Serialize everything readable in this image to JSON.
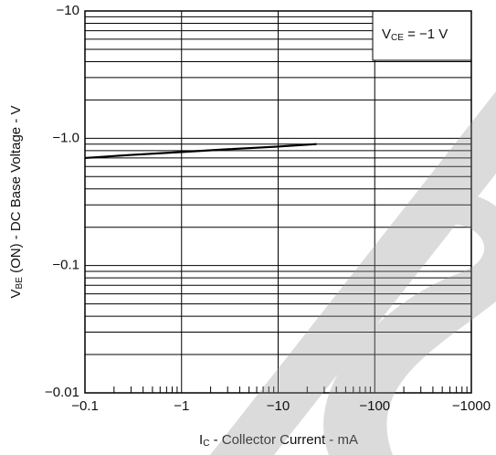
{
  "chart_data": {
    "type": "line",
    "x": [
      -0.1,
      -0.3,
      -1,
      -3,
      -10,
      -25
    ],
    "series": [
      {
        "color": "#000000",
        "values": [
          -0.7,
          -0.74,
          -0.78,
          -0.82,
          -0.86,
          -0.9
        ]
      }
    ],
    "xlim": [
      -0.1,
      -1000
    ],
    "ylim": [
      -0.01,
      -10
    ],
    "xticks": [
      {
        "value": -0.1,
        "label": "−0.1"
      },
      {
        "value": -1,
        "label": "−1"
      },
      {
        "value": -10,
        "label": "−10"
      },
      {
        "value": -100,
        "label": "−100"
      },
      {
        "value": -1000,
        "label": "−1000"
      }
    ],
    "yticks": [
      {
        "value": -0.01,
        "label": "−0.01"
      },
      {
        "value": -0.1,
        "label": "−0.1"
      },
      {
        "value": -1,
        "label": "−1.0"
      },
      {
        "value": -10,
        "label": "−10"
      }
    ],
    "xscale": "log",
    "yscale": "log",
    "grid": true,
    "xlabel": {
      "main": "I",
      "sub": "C",
      "rest": " - Collector Current - mA"
    },
    "ylabel": {
      "main": "V",
      "sub": "BE",
      "rest": " (ON) - DC Base Voltage - V"
    },
    "annotation": {
      "main": "V",
      "sub": "CE",
      "rest": " = −1 V"
    }
  }
}
